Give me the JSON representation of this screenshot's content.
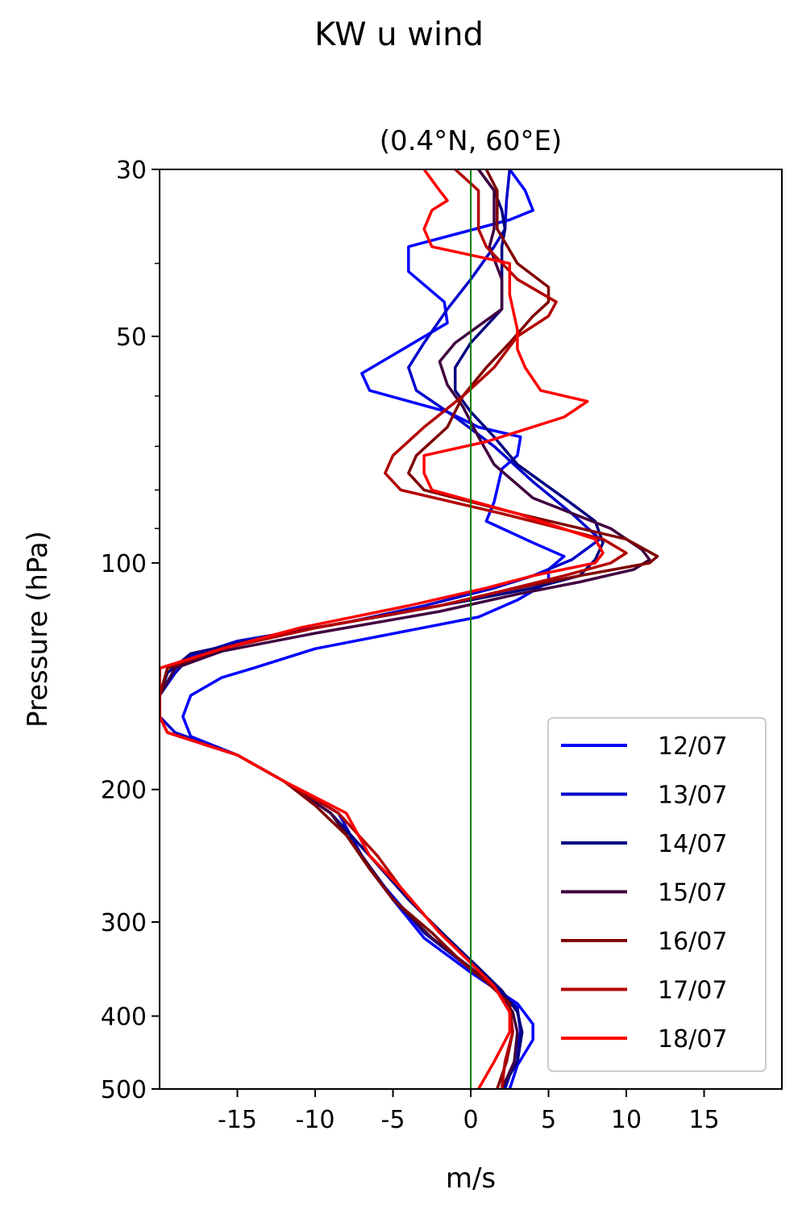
{
  "chart_data": {
    "type": "line",
    "title": "KW u wind",
    "subtitle": "(0.4°N, 60°E)",
    "xlabel": "m/s",
    "ylabel": "Pressure (hPa)",
    "xlim": [
      -20,
      20
    ],
    "ylim": [
      500,
      30
    ],
    "yscale": "log",
    "xticks": [
      -15,
      -10,
      -5,
      0,
      5,
      10,
      15
    ],
    "xtick_labels": [
      "-15",
      "-10",
      "-5",
      "0",
      "5",
      "10",
      "15"
    ],
    "yticks": [
      30,
      50,
      100,
      200,
      300,
      400,
      500
    ],
    "ytick_labels": [
      "30",
      "50",
      "100",
      "200",
      "300",
      "400",
      "500"
    ],
    "grid": false,
    "legend_position": "bottom-right",
    "reference_line": {
      "x": 0,
      "color": "#008000"
    },
    "series": [
      {
        "name": "12/07",
        "color": "#0000ff",
        "points": [
          [
            2.5,
            30
          ],
          [
            3.5,
            32
          ],
          [
            4,
            34
          ],
          [
            2.5,
            35
          ],
          [
            -4,
            38
          ],
          [
            -4,
            41
          ],
          [
            -1.7,
            45
          ],
          [
            -1.5,
            48
          ],
          [
            -7,
            56
          ],
          [
            -6.5,
            59
          ],
          [
            -1.5,
            63
          ],
          [
            0.5,
            66
          ],
          [
            3.2,
            68
          ],
          [
            3,
            72
          ],
          [
            2,
            75
          ],
          [
            1.5,
            83
          ],
          [
            1,
            88
          ],
          [
            4,
            94
          ],
          [
            6,
            98
          ],
          [
            5,
            102
          ],
          [
            5,
            106
          ],
          [
            3,
            112
          ],
          [
            0.5,
            118
          ],
          [
            -10,
            130
          ],
          [
            -14,
            138
          ],
          [
            -16,
            142
          ],
          [
            -18,
            150
          ],
          [
            -18.5,
            160
          ],
          [
            -18,
            170
          ],
          [
            -15,
            180
          ],
          [
            -12,
            195
          ],
          [
            -9,
            215
          ],
          [
            -7,
            245
          ],
          [
            -5,
            280
          ],
          [
            -3,
            315
          ],
          [
            0,
            350
          ],
          [
            3,
            385
          ],
          [
            4,
            410
          ],
          [
            4,
            430
          ],
          [
            3,
            465
          ],
          [
            2.5,
            500
          ]
        ]
      },
      {
        "name": "13/07",
        "color": "#0000cc",
        "points": [
          [
            2.5,
            30
          ],
          [
            2.3,
            33
          ],
          [
            2.2,
            36
          ],
          [
            1.5,
            38
          ],
          [
            0,
            42
          ],
          [
            -1.5,
            46
          ],
          [
            -3,
            51
          ],
          [
            -4,
            55
          ],
          [
            -3.5,
            59
          ],
          [
            -1,
            64
          ],
          [
            1.5,
            70
          ],
          [
            4,
            78
          ],
          [
            6.5,
            86
          ],
          [
            8.3,
            93
          ],
          [
            6.5,
            99
          ],
          [
            4,
            104
          ],
          [
            1.5,
            108
          ],
          [
            -3,
            114
          ],
          [
            -8,
            120
          ],
          [
            -15,
            127
          ],
          [
            -18,
            133
          ],
          [
            -19,
            140
          ],
          [
            -20,
            150
          ],
          [
            -20,
            160
          ],
          [
            -19,
            168
          ],
          [
            -15,
            180
          ],
          [
            -12,
            195
          ],
          [
            -8.5,
            215
          ],
          [
            -7,
            245
          ],
          [
            -5.5,
            270
          ],
          [
            -3,
            310
          ],
          [
            -0.5,
            340
          ],
          [
            1.5,
            365
          ],
          [
            3,
            390
          ],
          [
            3.2,
            420
          ],
          [
            2.8,
            460
          ],
          [
            2.2,
            500
          ]
        ]
      },
      {
        "name": "14/07",
        "color": "#000080",
        "points": [
          [
            0.5,
            30
          ],
          [
            1.5,
            32
          ],
          [
            2,
            34
          ],
          [
            2.2,
            36
          ],
          [
            2,
            38
          ],
          [
            2,
            42
          ],
          [
            2,
            46
          ],
          [
            0,
            51
          ],
          [
            -1,
            55
          ],
          [
            -1,
            59
          ],
          [
            0,
            63
          ],
          [
            1.5,
            68
          ],
          [
            3,
            74
          ],
          [
            6,
            82
          ],
          [
            8,
            88
          ],
          [
            8.5,
            94
          ],
          [
            8,
            99
          ],
          [
            7,
            104
          ],
          [
            4,
            108
          ],
          [
            0,
            112
          ],
          [
            -5,
            117
          ],
          [
            -12,
            124
          ],
          [
            -18,
            132
          ],
          [
            -19.5,
            140
          ],
          [
            -20,
            150
          ],
          [
            -20,
            160
          ],
          [
            -19.5,
            168
          ],
          [
            -15,
            180
          ],
          [
            -12,
            195
          ],
          [
            -9,
            215
          ],
          [
            -6.5,
            245
          ],
          [
            -4,
            280
          ],
          [
            -1.5,
            315
          ],
          [
            0.5,
            345
          ],
          [
            2,
            370
          ],
          [
            3,
            395
          ],
          [
            3.3,
            420
          ],
          [
            3,
            460
          ],
          [
            2,
            500
          ]
        ]
      },
      {
        "name": "15/07",
        "color": "#400040",
        "points": [
          [
            0.5,
            30
          ],
          [
            1.5,
            32
          ],
          [
            1.5,
            34
          ],
          [
            1.5,
            36
          ],
          [
            1.2,
            38
          ],
          [
            2,
            42
          ],
          [
            2,
            46
          ],
          [
            -1,
            51
          ],
          [
            -2,
            54
          ],
          [
            -1.5,
            58
          ],
          [
            -0.5,
            62
          ],
          [
            0.5,
            68
          ],
          [
            1.5,
            74
          ],
          [
            4,
            82
          ],
          [
            9,
            90
          ],
          [
            11,
            96
          ],
          [
            11.5,
            99
          ],
          [
            10.5,
            102
          ],
          [
            7,
            106
          ],
          [
            3,
            110
          ],
          [
            -2,
            116
          ],
          [
            -10,
            124
          ],
          [
            -16,
            131
          ],
          [
            -19,
            138
          ],
          [
            -20,
            150
          ],
          [
            -20,
            160
          ],
          [
            -19.5,
            168
          ],
          [
            -15,
            180
          ],
          [
            -12,
            195
          ],
          [
            -9,
            215
          ],
          [
            -7,
            245
          ],
          [
            -5,
            280
          ],
          [
            -2.5,
            315
          ],
          [
            0,
            345
          ],
          [
            1.7,
            370
          ],
          [
            2.7,
            395
          ],
          [
            3,
            420
          ],
          [
            2.8,
            460
          ],
          [
            2,
            500
          ]
        ]
      },
      {
        "name": "16/07",
        "color": "#800000",
        "points": [
          [
            1,
            30
          ],
          [
            1.7,
            32
          ],
          [
            1.7,
            34
          ],
          [
            1.7,
            36
          ],
          [
            3,
            40
          ],
          [
            5,
            43
          ],
          [
            5,
            45
          ],
          [
            4,
            47
          ],
          [
            2.5,
            51
          ],
          [
            1,
            55
          ],
          [
            -0.5,
            60
          ],
          [
            -1.5,
            66
          ],
          [
            -3.5,
            72
          ],
          [
            -4,
            76
          ],
          [
            -3,
            80
          ],
          [
            3,
            86
          ],
          [
            10,
            93
          ],
          [
            12,
            98
          ],
          [
            11.5,
            100
          ],
          [
            7,
            104
          ],
          [
            2,
            109
          ],
          [
            -2,
            114
          ],
          [
            -10,
            122
          ],
          [
            -16,
            130
          ],
          [
            -19.5,
            138
          ],
          [
            -20,
            150
          ],
          [
            -20,
            160
          ],
          [
            -19.5,
            168
          ],
          [
            -15,
            180
          ],
          [
            -12,
            195
          ],
          [
            -10,
            210
          ],
          [
            -8,
            230
          ],
          [
            -6.5,
            255
          ],
          [
            -5,
            280
          ],
          [
            -2.5,
            310
          ],
          [
            -0.5,
            340
          ],
          [
            1,
            360
          ],
          [
            2.5,
            385
          ],
          [
            2.7,
            420
          ],
          [
            2.3,
            460
          ],
          [
            1.7,
            500
          ]
        ]
      },
      {
        "name": "17/07",
        "color": "#b30000",
        "points": [
          [
            -1,
            30
          ],
          [
            0.5,
            32
          ],
          [
            0.5,
            34
          ],
          [
            0.5,
            36
          ],
          [
            1,
            38
          ],
          [
            3,
            42
          ],
          [
            5.5,
            45
          ],
          [
            5,
            47
          ],
          [
            3,
            50
          ],
          [
            1.5,
            55
          ],
          [
            -0.5,
            60
          ],
          [
            -3,
            66
          ],
          [
            -5,
            72
          ],
          [
            -5.5,
            76
          ],
          [
            -4.5,
            80
          ],
          [
            2,
            86
          ],
          [
            8.5,
            93
          ],
          [
            10,
            97
          ],
          [
            9,
            100
          ],
          [
            6,
            104
          ],
          [
            2,
            109
          ],
          [
            -2,
            114
          ],
          [
            -10,
            122
          ],
          [
            -16,
            130
          ],
          [
            -20,
            138
          ],
          [
            -20,
            150
          ],
          [
            -20,
            160
          ],
          [
            -19.5,
            168
          ],
          [
            -15,
            180
          ],
          [
            -12,
            195
          ],
          [
            -8.5,
            215
          ],
          [
            -6,
            245
          ],
          [
            -4.5,
            270
          ],
          [
            -2,
            310
          ],
          [
            0,
            340
          ],
          [
            1.5,
            365
          ],
          [
            2.5,
            395
          ],
          [
            2.7,
            420
          ],
          [
            2.2,
            460
          ],
          [
            2,
            500
          ]
        ]
      },
      {
        "name": "18/07",
        "color": "#ff0000",
        "points": [
          [
            -3,
            30
          ],
          [
            -2,
            32
          ],
          [
            -1.5,
            33
          ],
          [
            -2.5,
            34
          ],
          [
            -3,
            36
          ],
          [
            -2.5,
            38
          ],
          [
            2.5,
            40
          ],
          [
            2.5,
            42
          ],
          [
            2.5,
            44
          ],
          [
            3,
            49
          ],
          [
            3,
            52
          ],
          [
            3.5,
            55
          ],
          [
            4.5,
            59
          ],
          [
            7.5,
            61
          ],
          [
            6,
            64
          ],
          [
            1,
            69
          ],
          [
            -3,
            72
          ],
          [
            -3,
            76
          ],
          [
            -2.5,
            80
          ],
          [
            3,
            86
          ],
          [
            8,
            93
          ],
          [
            8.5,
            97
          ],
          [
            8,
            100
          ],
          [
            4,
            104
          ],
          [
            1,
            108
          ],
          [
            -4,
            114
          ],
          [
            -11,
            122
          ],
          [
            -16,
            130
          ],
          [
            -20,
            138
          ],
          [
            -20,
            150
          ],
          [
            -20,
            160
          ],
          [
            -19.5,
            168
          ],
          [
            -15,
            180
          ],
          [
            -12,
            195
          ],
          [
            -8,
            215
          ],
          [
            -6.5,
            245
          ],
          [
            -4.5,
            270
          ],
          [
            -2,
            310
          ],
          [
            0,
            340
          ],
          [
            1.5,
            365
          ],
          [
            2.5,
            395
          ],
          [
            2.5,
            420
          ],
          [
            1.5,
            460
          ],
          [
            0.5,
            500
          ]
        ]
      }
    ]
  }
}
